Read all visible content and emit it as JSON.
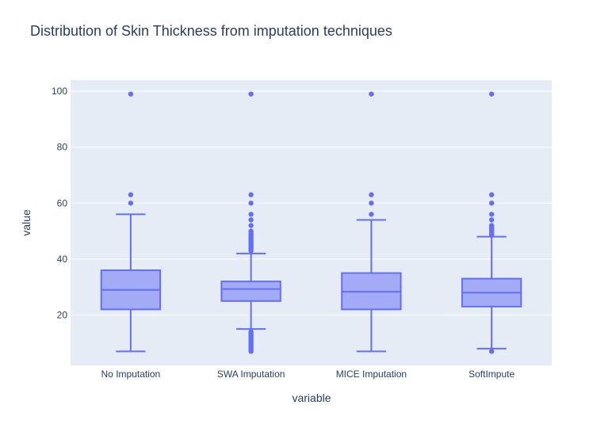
{
  "chart_data": {
    "type": "box",
    "title": "Distribution of Skin Thickness from imputation techniques",
    "xlabel": "variable",
    "ylabel": "value",
    "ylim": [
      2,
      104
    ],
    "yticks": [
      20,
      40,
      60,
      80,
      100
    ],
    "colors": {
      "box_line": "#636efa",
      "box_fill": "#a3aaf6",
      "plot_bg": "#e5ecf6",
      "grid": "#ffffff",
      "text": "#2a3f5f"
    },
    "categories": [
      "No Imputation",
      "SWA Imputation",
      "MICE Imputation",
      "SoftImpute"
    ],
    "boxes": [
      {
        "name": "No Imputation",
        "lower_fence": 7,
        "q1": 22,
        "median": 29,
        "q3": 36,
        "upper_fence": 56,
        "outliers": [
          60,
          63,
          99
        ]
      },
      {
        "name": "SWA Imputation",
        "lower_fence": 15,
        "q1": 25,
        "median": 29.3,
        "q3": 32,
        "upper_fence": 42,
        "outliers": [
          7,
          7.5,
          8,
          8.5,
          9,
          9.5,
          10,
          10.5,
          11,
          11.5,
          12,
          12.5,
          13,
          13.5,
          14,
          43,
          43.5,
          44,
          44.5,
          45,
          45.5,
          46,
          46.5,
          47,
          47.5,
          48,
          48.5,
          49,
          49.5,
          50,
          52,
          54,
          56,
          60,
          63,
          99
        ]
      },
      {
        "name": "MICE Imputation",
        "lower_fence": 7,
        "q1": 22,
        "median": 28.3,
        "q3": 35,
        "upper_fence": 54,
        "outliers": [
          56,
          60,
          63,
          99
        ]
      },
      {
        "name": "SoftImpute",
        "lower_fence": 8,
        "q1": 23,
        "median": 28,
        "q3": 33,
        "upper_fence": 48,
        "outliers": [
          7,
          48.5,
          49,
          49.5,
          50,
          50.5,
          51,
          51.5,
          52,
          54,
          56,
          60,
          63,
          99
        ]
      }
    ]
  }
}
